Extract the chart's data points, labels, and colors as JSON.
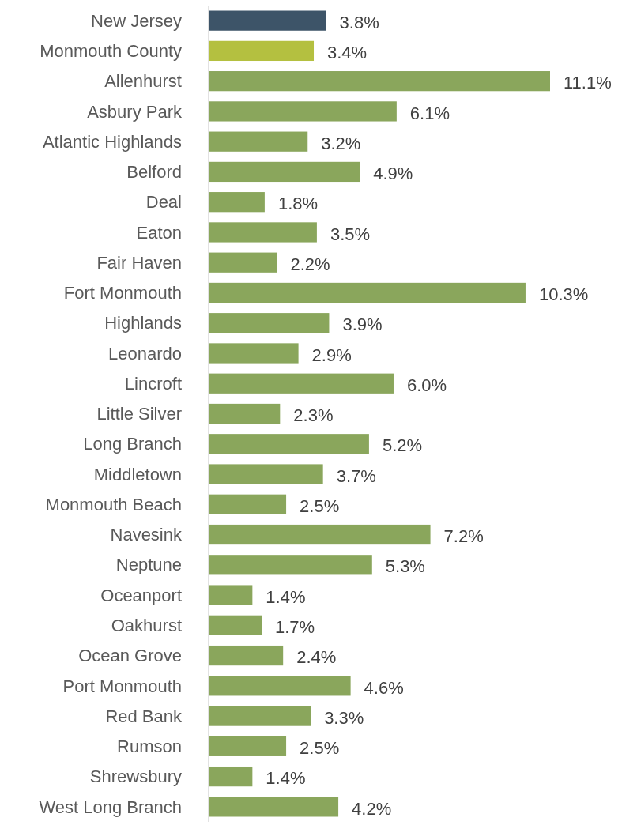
{
  "chart_data": {
    "type": "bar",
    "orientation": "horizontal",
    "categories": [
      "New Jersey",
      "Monmouth County",
      "Allenhurst",
      "Asbury Park",
      "Atlantic Highlands",
      "Belford",
      "Deal",
      "Eaton",
      "Fair Haven",
      "Fort Monmouth",
      "Highlands",
      "Leonardo",
      "Lincroft",
      "Little Silver",
      "Long Branch",
      "Middletown",
      "Monmouth Beach",
      "Navesink",
      "Neptune",
      "Oceanport",
      "Oakhurst",
      "Ocean Grove",
      "Port Monmouth",
      "Red Bank",
      "Rumson",
      "Shrewsbury",
      "West Long Branch"
    ],
    "values": [
      3.8,
      3.4,
      11.1,
      6.1,
      3.2,
      4.9,
      1.8,
      3.5,
      2.2,
      10.3,
      3.9,
      2.9,
      6.0,
      2.3,
      5.2,
      3.7,
      2.5,
      7.2,
      5.3,
      1.4,
      1.7,
      2.4,
      4.6,
      3.3,
      2.5,
      1.4,
      4.2
    ],
    "value_labels": [
      "3.8%",
      "3.4%",
      "11.1%",
      "6.1%",
      "3.2%",
      "4.9%",
      "1.8%",
      "3.5%",
      "2.2%",
      "10.3%",
      "3.9%",
      "2.9%",
      "6.0%",
      "2.3%",
      "5.2%",
      "3.7%",
      "2.5%",
      "7.2%",
      "5.3%",
      "1.4%",
      "1.7%",
      "2.4%",
      "4.6%",
      "3.3%",
      "2.5%",
      "1.4%",
      "4.2%"
    ],
    "colors": [
      "#3d5468",
      "#b4c040",
      "#8aa65c",
      "#8aa65c",
      "#8aa65c",
      "#8aa65c",
      "#8aa65c",
      "#8aa65c",
      "#8aa65c",
      "#8aa65c",
      "#8aa65c",
      "#8aa65c",
      "#8aa65c",
      "#8aa65c",
      "#8aa65c",
      "#8aa65c",
      "#8aa65c",
      "#8aa65c",
      "#8aa65c",
      "#8aa65c",
      "#8aa65c",
      "#8aa65c",
      "#8aa65c",
      "#8aa65c",
      "#8aa65c",
      "#8aa65c",
      "#8aa65c"
    ]
  }
}
